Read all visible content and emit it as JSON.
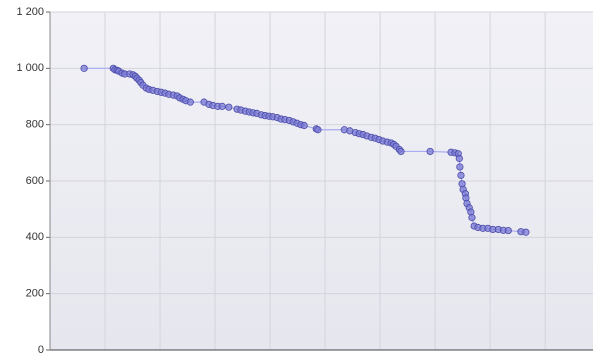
{
  "chart_data": {
    "type": "line",
    "x": [
      0.62,
      1.15,
      1.18,
      1.22,
      1.25,
      1.31,
      1.36,
      1.45,
      1.51,
      1.55,
      1.58,
      1.62,
      1.65,
      1.69,
      1.75,
      1.8,
      1.87,
      1.95,
      2.02,
      2.09,
      2.16,
      2.24,
      2.31,
      2.36,
      2.42,
      2.47,
      2.55,
      2.8,
      2.89,
      2.96,
      3.05,
      3.13,
      3.25,
      3.4,
      3.47,
      3.55,
      3.62,
      3.69,
      3.76,
      3.84,
      3.91,
      3.98,
      4.05,
      4.13,
      4.2,
      4.27,
      4.35,
      4.42,
      4.49,
      4.56,
      4.62,
      4.84,
      4.87,
      5.35,
      5.45,
      5.55,
      5.62,
      5.69,
      5.76,
      5.84,
      5.91,
      5.98,
      6.05,
      6.13,
      6.2,
      6.25,
      6.29,
      6.35,
      6.38,
      6.91,
      7.29,
      7.36,
      7.42,
      7.44,
      7.45,
      7.47,
      7.49,
      7.51,
      7.55,
      7.56,
      7.58,
      7.62,
      7.65,
      7.67,
      7.71,
      7.78,
      7.87,
      7.96,
      8.05,
      8.15,
      8.24,
      8.33,
      8.56,
      8.65
    ],
    "series": [
      {
        "color": "#7b7bd6",
        "line_color": "#aaaaf0",
        "values": [
          1000,
          1000,
          995,
          993,
          990,
          983,
          980,
          980,
          977,
          972,
          965,
          958,
          950,
          940,
          930,
          925,
          922,
          918,
          915,
          912,
          908,
          905,
          902,
          895,
          890,
          885,
          880,
          880,
          872,
          868,
          865,
          865,
          862,
          855,
          852,
          848,
          845,
          842,
          840,
          835,
          832,
          830,
          828,
          825,
          820,
          818,
          815,
          810,
          805,
          800,
          797,
          785,
          782,
          782,
          778,
          772,
          768,
          765,
          760,
          755,
          752,
          747,
          742,
          738,
          735,
          730,
          723,
          712,
          705,
          705,
          702,
          700,
          697,
          680,
          650,
          620,
          590,
          570,
          555,
          540,
          520,
          505,
          490,
          470,
          440,
          435,
          432,
          432,
          428,
          428,
          425,
          424,
          420,
          418
        ]
      }
    ],
    "xlim": [
      0,
      9.87
    ],
    "xticks": [
      1,
      2,
      3,
      4,
      5,
      6,
      7,
      8,
      9
    ],
    "ylim": [
      0,
      1200
    ],
    "yticks": [
      0,
      200,
      400,
      600,
      800,
      1000,
      {
        "value": 1000,
        "label": "1 000"
      },
      {
        "value": 1200,
        "label": "1 200"
      }
    ],
    "grid": true
  }
}
